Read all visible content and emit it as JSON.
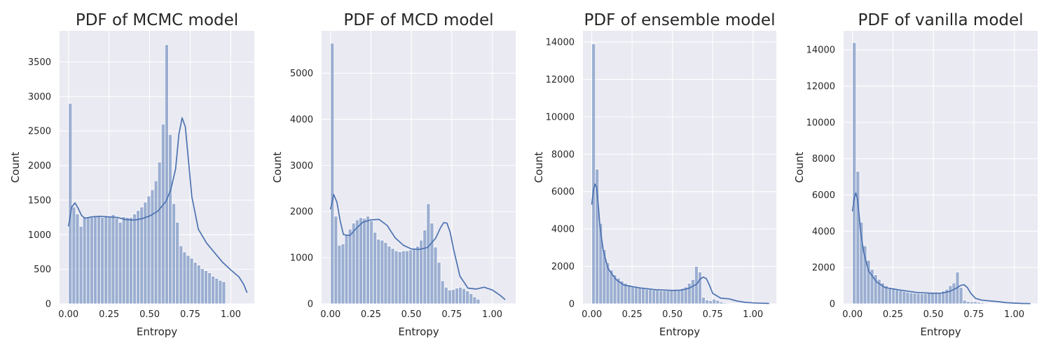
{
  "chart_data": [
    {
      "type": "histogram",
      "title": "PDF of MCMC model",
      "xlabel": "Entropy",
      "ylabel": "Count",
      "xlim": [
        -0.055,
        1.145
      ],
      "ylim": [
        0,
        3950
      ],
      "xticks": [
        0,
        0.25,
        0.5,
        0.75,
        1.0
      ],
      "xtick_labels": [
        "0.00",
        "0.25",
        "0.50",
        "0.75",
        "1.00"
      ],
      "yticks": [
        0,
        500,
        1000,
        1500,
        2000,
        2500,
        3000,
        3500
      ],
      "bin_start": 0,
      "bin_width": 0.022,
      "counts": [
        2900,
        1400,
        1300,
        1120,
        1250,
        1260,
        1250,
        1260,
        1260,
        1250,
        1260,
        1250,
        1290,
        1240,
        1180,
        1260,
        1250,
        1250,
        1300,
        1350,
        1400,
        1470,
        1560,
        1650,
        1780,
        2050,
        2600,
        3750,
        2450,
        1450,
        1180,
        840,
        750,
        700,
        660,
        600,
        560,
        510,
        480,
        450,
        400,
        370,
        340,
        320
      ],
      "kde": {
        "x": [
          0.0,
          0.02,
          0.04,
          0.06,
          0.08,
          0.1,
          0.15,
          0.2,
          0.3,
          0.35,
          0.4,
          0.45,
          0.5,
          0.55,
          0.6,
          0.63,
          0.66,
          0.68,
          0.7,
          0.72,
          0.74,
          0.76,
          0.8,
          0.85,
          0.9,
          0.95,
          1.0,
          1.05,
          1.08,
          1.1
        ],
        "y": [
          1120,
          1400,
          1460,
          1380,
          1280,
          1240,
          1260,
          1265,
          1250,
          1220,
          1210,
          1230,
          1270,
          1340,
          1480,
          1650,
          1950,
          2450,
          2690,
          2560,
          2050,
          1550,
          1080,
          880,
          740,
          600,
          490,
          390,
          280,
          160
        ]
      }
    },
    {
      "type": "histogram",
      "title": "PDF of MCD model",
      "xlabel": "Entropy",
      "ylabel": "Count",
      "xlim": [
        -0.055,
        1.145
      ],
      "ylim": [
        0,
        5920
      ],
      "xticks": [
        0,
        0.25,
        0.5,
        0.75,
        1.0
      ],
      "xtick_labels": [
        "0.00",
        "0.25",
        "0.50",
        "0.75",
        "1.00"
      ],
      "yticks": [
        0,
        1000,
        2000,
        3000,
        4000,
        5000
      ],
      "bin_start": 0,
      "bin_width": 0.022,
      "counts": [
        5650,
        1900,
        1270,
        1300,
        1500,
        1620,
        1750,
        1820,
        1870,
        1850,
        1900,
        1800,
        1550,
        1400,
        1380,
        1330,
        1250,
        1200,
        1150,
        1130,
        1150,
        1150,
        1170,
        1180,
        1250,
        1380,
        1600,
        2170,
        1750,
        1230,
        900,
        500,
        360,
        300,
        310,
        340,
        360,
        330,
        280,
        220,
        150,
        100
      ],
      "kde": {
        "x": [
          0.0,
          0.02,
          0.04,
          0.06,
          0.08,
          0.12,
          0.16,
          0.2,
          0.25,
          0.3,
          0.35,
          0.4,
          0.45,
          0.5,
          0.55,
          0.6,
          0.65,
          0.68,
          0.7,
          0.72,
          0.74,
          0.76,
          0.8,
          0.85,
          0.9,
          0.95,
          1.0,
          1.05,
          1.08
        ],
        "y": [
          2050,
          2370,
          2200,
          1800,
          1500,
          1480,
          1640,
          1770,
          1820,
          1830,
          1700,
          1430,
          1270,
          1190,
          1180,
          1220,
          1420,
          1650,
          1760,
          1750,
          1550,
          1200,
          600,
          340,
          320,
          360,
          300,
          180,
          90
        ]
      }
    },
    {
      "type": "histogram",
      "title": "PDF of ensemble model",
      "xlabel": "Entropy",
      "ylabel": "Count",
      "xlim": [
        -0.055,
        1.145
      ],
      "ylim": [
        0,
        14600
      ],
      "xticks": [
        0,
        0.25,
        0.5,
        0.75,
        1.0
      ],
      "xtick_labels": [
        "0.00",
        "0.25",
        "0.50",
        "0.75",
        "1.00"
      ],
      "yticks": [
        0,
        2000,
        4000,
        6000,
        8000,
        10000,
        12000,
        14000
      ],
      "bin_start": 0,
      "bin_width": 0.022,
      "counts": [
        13900,
        7200,
        4300,
        2900,
        2200,
        1800,
        1550,
        1380,
        1220,
        1100,
        1020,
        950,
        900,
        860,
        820,
        780,
        760,
        730,
        720,
        700,
        700,
        700,
        720,
        740,
        780,
        820,
        900,
        1100,
        1300,
        2000,
        1700,
        350,
        200,
        170,
        250,
        180,
        100,
        60,
        40,
        30,
        20,
        15,
        10,
        8,
        5,
        3,
        2,
        2,
        1,
        1
      ],
      "kde": {
        "x": [
          0.0,
          0.01,
          0.02,
          0.03,
          0.04,
          0.05,
          0.07,
          0.1,
          0.15,
          0.2,
          0.3,
          0.4,
          0.5,
          0.55,
          0.6,
          0.65,
          0.67,
          0.69,
          0.71,
          0.73,
          0.75,
          0.8,
          0.85,
          0.9,
          0.95,
          1.0,
          1.05,
          1.1
        ],
        "y": [
          5300,
          6100,
          6400,
          6200,
          5300,
          4200,
          2900,
          1900,
          1300,
          1000,
          850,
          750,
          720,
          730,
          820,
          1050,
          1300,
          1430,
          1350,
          1000,
          560,
          300,
          270,
          150,
          80,
          50,
          30,
          20
        ]
      }
    },
    {
      "type": "histogram",
      "title": "PDF of vanilla model",
      "xlabel": "Entropy",
      "ylabel": "Count",
      "xlim": [
        -0.055,
        1.145
      ],
      "ylim": [
        0,
        15050
      ],
      "xticks": [
        0,
        0.25,
        0.5,
        0.75,
        1.0
      ],
      "xtick_labels": [
        "0.00",
        "0.25",
        "0.50",
        "0.75",
        "1.00"
      ],
      "yticks": [
        0,
        2000,
        4000,
        6000,
        8000,
        10000,
        12000,
        14000
      ],
      "bin_start": 0,
      "bin_width": 0.022,
      "counts": [
        14400,
        7300,
        4500,
        3200,
        2400,
        1900,
        1600,
        1350,
        1150,
        1000,
        900,
        820,
        760,
        720,
        680,
        640,
        610,
        590,
        570,
        560,
        560,
        570,
        580,
        600,
        640,
        700,
        800,
        1000,
        1150,
        1750,
        900,
        200,
        130,
        110,
        120,
        90,
        60,
        40,
        25,
        15,
        10,
        8,
        5,
        3,
        2,
        2,
        1,
        1
      ],
      "kde": {
        "x": [
          0.0,
          0.01,
          0.02,
          0.03,
          0.04,
          0.05,
          0.07,
          0.1,
          0.15,
          0.2,
          0.3,
          0.4,
          0.5,
          0.55,
          0.6,
          0.64,
          0.67,
          0.69,
          0.71,
          0.73,
          0.76,
          0.8,
          0.85,
          0.9,
          0.95,
          1.0,
          1.05,
          1.1
        ],
        "y": [
          5100,
          5800,
          6100,
          5800,
          5000,
          4000,
          2800,
          1800,
          1200,
          900,
          750,
          620,
          580,
          590,
          680,
          850,
          1020,
          1050,
          900,
          600,
          300,
          200,
          160,
          120,
          60,
          40,
          20,
          10
        ]
      }
    }
  ]
}
